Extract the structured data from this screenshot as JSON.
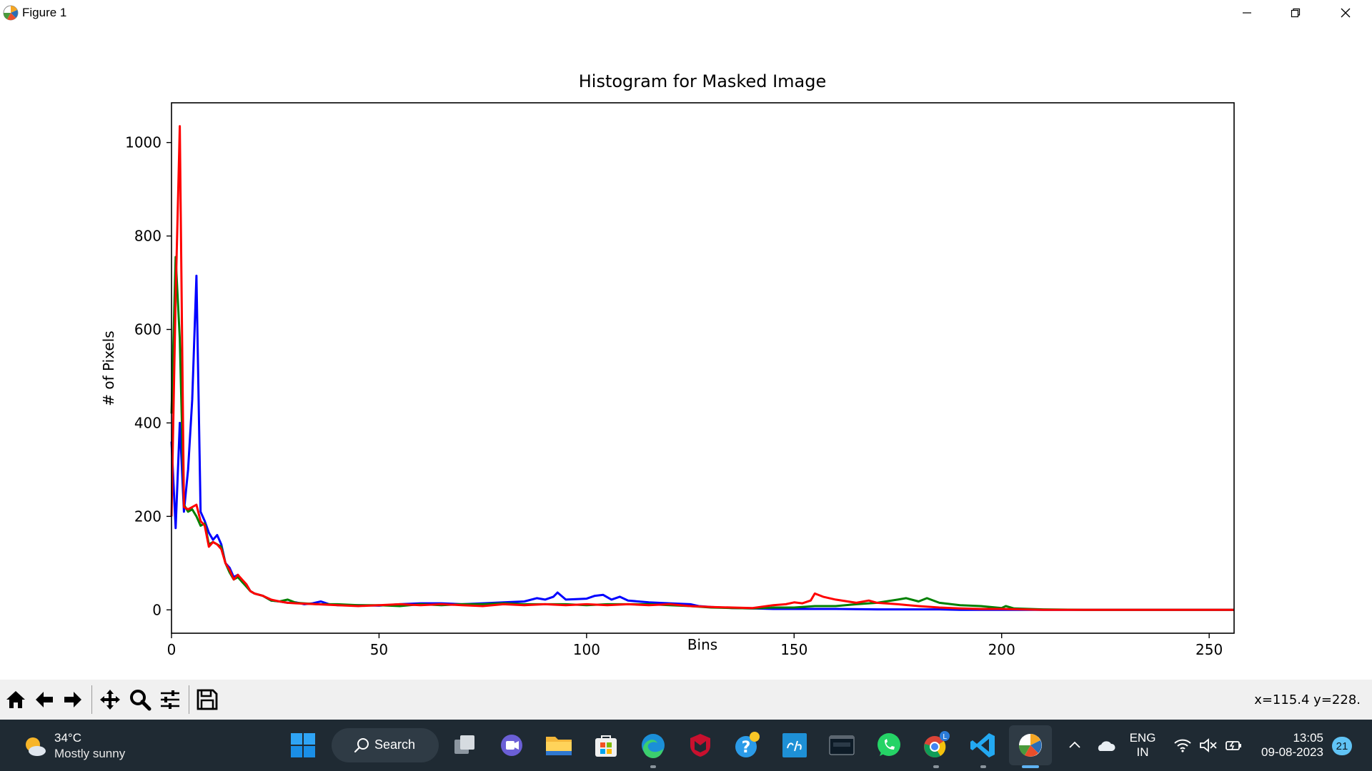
{
  "window": {
    "title": "Figure 1",
    "icon": "matplotlib-icon"
  },
  "window_controls": {
    "minimize_icon": "minimize-icon",
    "restore_icon": "restore-icon",
    "close_icon": "close-icon"
  },
  "chart_data": {
    "type": "line",
    "title": "Histogram for Masked Image",
    "xlabel": "Bins",
    "ylabel": "# of Pixels",
    "xlim": [
      0,
      256
    ],
    "ylim": [
      -50,
      1085
    ],
    "xticks": [
      0,
      50,
      100,
      150,
      200,
      250
    ],
    "xtick_labels": [
      "0",
      "50",
      "100",
      "150",
      "200",
      "250"
    ],
    "yticks": [
      0,
      200,
      400,
      600,
      800,
      1000
    ],
    "ytick_labels": [
      "0",
      "200",
      "400",
      "600",
      "800",
      "1000"
    ],
    "grid": false,
    "series": [
      {
        "color": "#0000ff",
        "points": [
          [
            0,
            360
          ],
          [
            1,
            175
          ],
          [
            2,
            400
          ],
          [
            3,
            210
          ],
          [
            4,
            300
          ],
          [
            5,
            450
          ],
          [
            6,
            715
          ],
          [
            7,
            210
          ],
          [
            8,
            190
          ],
          [
            9,
            165
          ],
          [
            10,
            150
          ],
          [
            11,
            160
          ],
          [
            12,
            140
          ],
          [
            13,
            100
          ],
          [
            14,
            90
          ],
          [
            15,
            70
          ],
          [
            16,
            75
          ],
          [
            17,
            60
          ],
          [
            18,
            55
          ],
          [
            19,
            40
          ],
          [
            20,
            35
          ],
          [
            22,
            30
          ],
          [
            24,
            20
          ],
          [
            26,
            18
          ],
          [
            28,
            15
          ],
          [
            30,
            16
          ],
          [
            32,
            12
          ],
          [
            34,
            14
          ],
          [
            36,
            18
          ],
          [
            38,
            12
          ],
          [
            40,
            10
          ],
          [
            45,
            10
          ],
          [
            50,
            9
          ],
          [
            55,
            12
          ],
          [
            60,
            14
          ],
          [
            65,
            14
          ],
          [
            70,
            12
          ],
          [
            75,
            14
          ],
          [
            80,
            16
          ],
          [
            85,
            18
          ],
          [
            88,
            25
          ],
          [
            90,
            22
          ],
          [
            92,
            28
          ],
          [
            93,
            37
          ],
          [
            95,
            22
          ],
          [
            100,
            24
          ],
          [
            102,
            30
          ],
          [
            104,
            32
          ],
          [
            106,
            22
          ],
          [
            108,
            28
          ],
          [
            110,
            20
          ],
          [
            115,
            16
          ],
          [
            120,
            14
          ],
          [
            125,
            12
          ],
          [
            127,
            8
          ],
          [
            130,
            6
          ],
          [
            135,
            4
          ],
          [
            140,
            3
          ],
          [
            145,
            2
          ],
          [
            150,
            2
          ],
          [
            160,
            2
          ],
          [
            170,
            1
          ],
          [
            180,
            1
          ],
          [
            185,
            1
          ],
          [
            190,
            0
          ],
          [
            200,
            0
          ],
          [
            210,
            0
          ],
          [
            256,
            0
          ]
        ]
      },
      {
        "color": "#008000",
        "points": [
          [
            0,
            420
          ],
          [
            1,
            755
          ],
          [
            2,
            580
          ],
          [
            3,
            225
          ],
          [
            4,
            210
          ],
          [
            5,
            215
          ],
          [
            6,
            200
          ],
          [
            7,
            180
          ],
          [
            8,
            185
          ],
          [
            9,
            140
          ],
          [
            10,
            145
          ],
          [
            11,
            140
          ],
          [
            12,
            135
          ],
          [
            13,
            100
          ],
          [
            14,
            80
          ],
          [
            15,
            65
          ],
          [
            16,
            70
          ],
          [
            17,
            60
          ],
          [
            18,
            50
          ],
          [
            19,
            40
          ],
          [
            20,
            35
          ],
          [
            22,
            30
          ],
          [
            24,
            20
          ],
          [
            26,
            18
          ],
          [
            28,
            22
          ],
          [
            30,
            15
          ],
          [
            35,
            12
          ],
          [
            40,
            12
          ],
          [
            45,
            10
          ],
          [
            50,
            10
          ],
          [
            55,
            8
          ],
          [
            60,
            12
          ],
          [
            65,
            10
          ],
          [
            70,
            12
          ],
          [
            75,
            12
          ],
          [
            80,
            14
          ],
          [
            85,
            12
          ],
          [
            90,
            12
          ],
          [
            95,
            12
          ],
          [
            100,
            10
          ],
          [
            105,
            12
          ],
          [
            110,
            12
          ],
          [
            115,
            12
          ],
          [
            120,
            10
          ],
          [
            125,
            8
          ],
          [
            130,
            5
          ],
          [
            135,
            4
          ],
          [
            140,
            3
          ],
          [
            145,
            5
          ],
          [
            150,
            5
          ],
          [
            155,
            8
          ],
          [
            160,
            8
          ],
          [
            165,
            12
          ],
          [
            170,
            15
          ],
          [
            175,
            22
          ],
          [
            177,
            25
          ],
          [
            180,
            18
          ],
          [
            182,
            25
          ],
          [
            185,
            15
          ],
          [
            190,
            10
          ],
          [
            195,
            8
          ],
          [
            200,
            4
          ],
          [
            201,
            8
          ],
          [
            203,
            3
          ],
          [
            210,
            1
          ],
          [
            220,
            0
          ],
          [
            256,
            0
          ]
        ]
      },
      {
        "color": "#ff0000",
        "points": [
          [
            0,
            200
          ],
          [
            1,
            670
          ],
          [
            2,
            1035
          ],
          [
            3,
            220
          ],
          [
            4,
            215
          ],
          [
            5,
            220
          ],
          [
            6,
            225
          ],
          [
            7,
            190
          ],
          [
            8,
            180
          ],
          [
            9,
            135
          ],
          [
            10,
            145
          ],
          [
            11,
            140
          ],
          [
            12,
            130
          ],
          [
            13,
            100
          ],
          [
            14,
            85
          ],
          [
            15,
            65
          ],
          [
            16,
            75
          ],
          [
            17,
            65
          ],
          [
            18,
            55
          ],
          [
            19,
            40
          ],
          [
            20,
            35
          ],
          [
            22,
            30
          ],
          [
            24,
            22
          ],
          [
            26,
            18
          ],
          [
            28,
            15
          ],
          [
            30,
            14
          ],
          [
            35,
            12
          ],
          [
            40,
            10
          ],
          [
            45,
            8
          ],
          [
            50,
            10
          ],
          [
            55,
            12
          ],
          [
            60,
            10
          ],
          [
            65,
            12
          ],
          [
            70,
            10
          ],
          [
            75,
            8
          ],
          [
            80,
            12
          ],
          [
            85,
            10
          ],
          [
            90,
            12
          ],
          [
            95,
            10
          ],
          [
            100,
            12
          ],
          [
            105,
            10
          ],
          [
            110,
            12
          ],
          [
            115,
            10
          ],
          [
            120,
            12
          ],
          [
            125,
            8
          ],
          [
            130,
            6
          ],
          [
            135,
            5
          ],
          [
            140,
            4
          ],
          [
            145,
            10
          ],
          [
            148,
            12
          ],
          [
            150,
            16
          ],
          [
            152,
            14
          ],
          [
            154,
            20
          ],
          [
            155,
            35
          ],
          [
            157,
            28
          ],
          [
            160,
            22
          ],
          [
            165,
            15
          ],
          [
            168,
            20
          ],
          [
            170,
            15
          ],
          [
            175,
            12
          ],
          [
            180,
            8
          ],
          [
            185,
            5
          ],
          [
            190,
            3
          ],
          [
            195,
            2
          ],
          [
            200,
            2
          ],
          [
            205,
            1
          ],
          [
            210,
            0
          ],
          [
            256,
            0
          ]
        ]
      }
    ]
  },
  "toolbar": {
    "home_icon": "home-icon",
    "back_icon": "back-arrow-icon",
    "forward_icon": "forward-arrow-icon",
    "pan_icon": "pan-icon",
    "zoom_icon": "zoom-icon",
    "configure_icon": "configure-subplots-icon",
    "save_icon": "save-icon",
    "coordinates": "x=115.4 y=228."
  },
  "taskbar": {
    "weather_temp": "34°C",
    "weather_condition": "Mostly sunny",
    "search_label": "Search",
    "language_top": "ENG",
    "language_bottom": "IN",
    "time": "13:05",
    "date": "09-08-2023",
    "notification_count": "21"
  }
}
